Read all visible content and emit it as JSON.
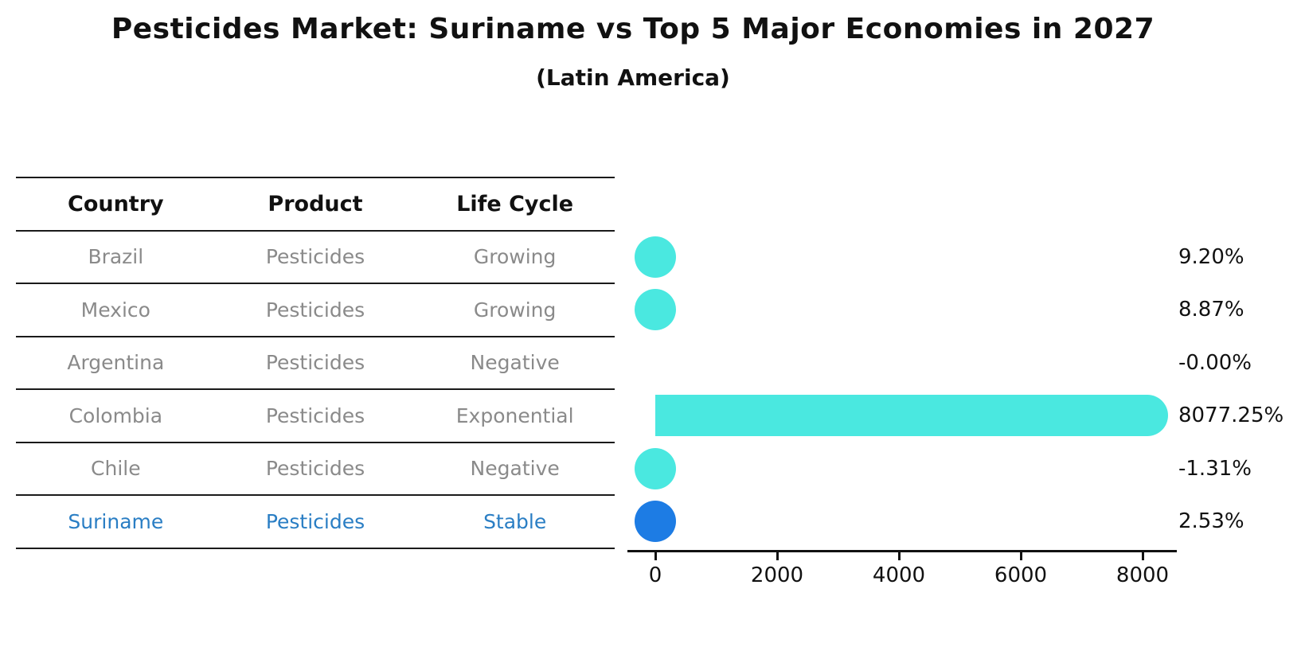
{
  "title": "Pesticides Market: Suriname vs Top 5 Major Economies in 2027",
  "subtitle": "(Latin America)",
  "table": {
    "headers": [
      "Country",
      "Product",
      "Life Cycle"
    ],
    "rows": [
      {
        "country": "Brazil",
        "product": "Pesticides",
        "life_cycle": "Growing",
        "highlighted": false
      },
      {
        "country": "Mexico",
        "product": "Pesticides",
        "life_cycle": "Growing",
        "highlighted": false
      },
      {
        "country": "Argentina",
        "product": "Pesticides",
        "life_cycle": "Negative",
        "highlighted": false
      },
      {
        "country": "Colombia",
        "product": "Pesticides",
        "life_cycle": "Exponential",
        "highlighted": false
      },
      {
        "country": "Chile",
        "product": "Pesticides",
        "life_cycle": "Negative",
        "highlighted": false
      },
      {
        "country": "Suriname",
        "product": "Pesticides",
        "life_cycle": "Stable",
        "highlighted": true
      }
    ]
  },
  "chart_data": {
    "type": "bar",
    "orientation": "horizontal",
    "categories": [
      "Brazil",
      "Mexico",
      "Argentina",
      "Colombia",
      "Chile",
      "Suriname"
    ],
    "values": [
      9.2,
      8.87,
      -0.0,
      8077.25,
      -1.31,
      2.53
    ],
    "value_labels": [
      "9.20%",
      "8.87%",
      "-0.00%",
      "8077.25%",
      "-1.31%",
      "2.53%"
    ],
    "x_ticks": [
      0,
      2000,
      4000,
      6000,
      8000
    ],
    "x_tick_labels": [
      "0",
      "2000",
      "4000",
      "6000",
      "8000"
    ],
    "xlim": [
      0,
      8500
    ],
    "highlight_index": 5,
    "grid": false,
    "legend": false
  },
  "colors": {
    "bar_default": "#4AE8E0",
    "bar_highlight": "#1D7CE4",
    "highlight_text": "#2A7EC4",
    "table_text": "#8A8A8A",
    "heading_text": "#111111"
  }
}
